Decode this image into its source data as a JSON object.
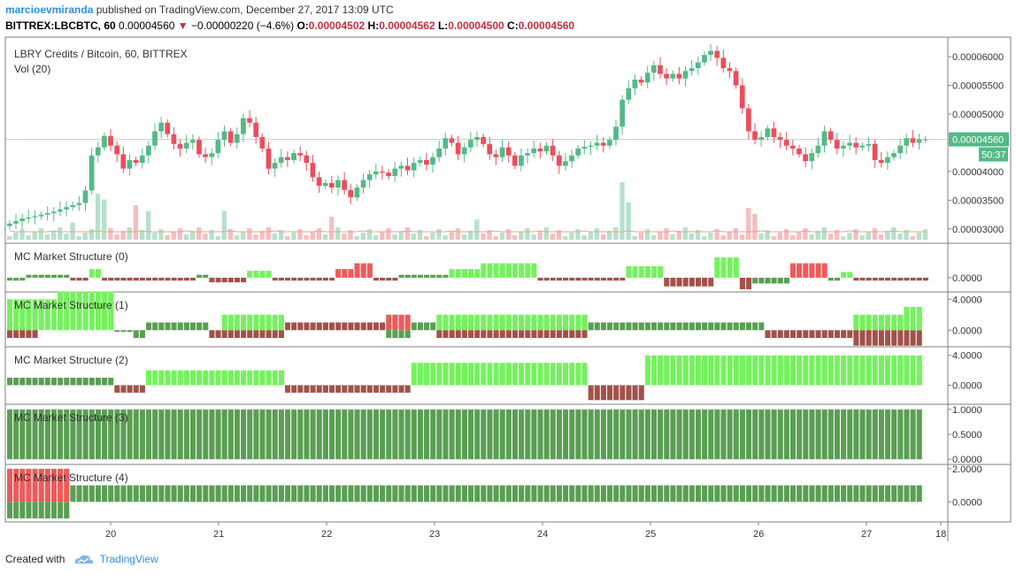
{
  "header": {
    "author": "marcioevmiranda",
    "published_text": "published on TradingView.com, December 27, 2017 13:09 UTC",
    "symbol": "BITTREX:LBCBTC, 60",
    "last_price": "0.00004560",
    "change": "−0.00000220 (−4.6%)",
    "o_label": "O:",
    "o_value": "0.00004502",
    "h_label": "H:",
    "h_value": "0.00004562",
    "l_label": "L:",
    "l_value": "0.00004500",
    "c_label": "C:",
    "c_value": "0.00004560"
  },
  "footer": {
    "created_with": "Created with",
    "brand": "TradingView"
  },
  "chart_data": [
    {
      "type": "candlestick",
      "title": "LBRY Credits / Bitcoin, 60, BITTREX",
      "volume_label": "Vol (20)",
      "ylim": [
        2.75e-05,
        6.34e-05
      ],
      "yticks": [
        "0.00006000",
        "0.00005500",
        "0.00005000",
        "0.00004500",
        "0.00004000",
        "0.00003500",
        "0.00003000"
      ],
      "ytick_values": [
        6e-05,
        5.5e-05,
        5e-05,
        4.5e-05,
        4e-05,
        3.5e-05,
        3e-05
      ],
      "last_price_label": "0.00004560",
      "last_price": 4.56e-05,
      "countdown": "50:37",
      "close_path": [
        [
          0,
          3.05e-05
        ],
        [
          3,
          3.18e-05
        ],
        [
          5,
          3.22e-05
        ],
        [
          8,
          3.3e-05
        ],
        [
          10,
          3.38e-05
        ],
        [
          12,
          3.45e-05
        ],
        [
          13,
          3.67e-05
        ],
        [
          14,
          4.28e-05
        ],
        [
          15,
          4.42e-05
        ],
        [
          16,
          4.62e-05
        ],
        [
          17,
          4.45e-05
        ],
        [
          18,
          4.3e-05
        ],
        [
          19,
          4.05e-05
        ],
        [
          20,
          4.2e-05
        ],
        [
          21,
          4.15e-05
        ],
        [
          22,
          4.28e-05
        ],
        [
          23,
          4.45e-05
        ],
        [
          24,
          4.7e-05
        ],
        [
          25,
          4.85e-05
        ],
        [
          26,
          4.65e-05
        ],
        [
          27,
          4.48e-05
        ],
        [
          28,
          4.4e-05
        ],
        [
          29,
          4.5e-05
        ],
        [
          30,
          4.55e-05
        ],
        [
          31,
          4.3e-05
        ],
        [
          32,
          4.25e-05
        ],
        [
          33,
          4.32e-05
        ],
        [
          34,
          4.55e-05
        ],
        [
          35,
          4.7e-05
        ],
        [
          36,
          4.5e-05
        ],
        [
          37,
          4.65e-05
        ],
        [
          38,
          4.93e-05
        ],
        [
          39,
          4.85e-05
        ],
        [
          40,
          4.6e-05
        ],
        [
          41,
          4.4e-05
        ],
        [
          42,
          4.05e-05
        ],
        [
          43,
          4.15e-05
        ],
        [
          44,
          4.25e-05
        ],
        [
          45,
          4.2e-05
        ],
        [
          46,
          4.32e-05
        ],
        [
          47,
          4.28e-05
        ],
        [
          48,
          4.15e-05
        ],
        [
          49,
          3.9e-05
        ],
        [
          50,
          3.75e-05
        ],
        [
          51,
          3.8e-05
        ],
        [
          52,
          3.72e-05
        ],
        [
          53,
          3.85e-05
        ],
        [
          54,
          3.68e-05
        ],
        [
          55,
          3.55e-05
        ],
        [
          56,
          3.72e-05
        ],
        [
          57,
          3.85e-05
        ],
        [
          58,
          3.95e-05
        ],
        [
          59,
          4e-05
        ],
        [
          60,
          3.98e-05
        ],
        [
          61,
          3.92e-05
        ],
        [
          62,
          4.05e-05
        ],
        [
          63,
          4.1e-05
        ],
        [
          64,
          4.02e-05
        ],
        [
          65,
          4.15e-05
        ],
        [
          66,
          4.2e-05
        ],
        [
          67,
          4.12e-05
        ],
        [
          68,
          4.25e-05
        ],
        [
          69,
          4.4e-05
        ],
        [
          70,
          4.58e-05
        ],
        [
          71,
          4.5e-05
        ],
        [
          72,
          4.3e-05
        ],
        [
          73,
          4.42e-05
        ],
        [
          74,
          4.55e-05
        ],
        [
          75,
          4.6e-05
        ],
        [
          76,
          4.48e-05
        ],
        [
          77,
          4.3e-05
        ],
        [
          78,
          4.25e-05
        ],
        [
          79,
          4.42e-05
        ],
        [
          80,
          4.28e-05
        ],
        [
          81,
          4.1e-05
        ],
        [
          82,
          4.28e-05
        ],
        [
          83,
          4.32e-05
        ],
        [
          84,
          4.4e-05
        ],
        [
          85,
          4.35e-05
        ],
        [
          86,
          4.45e-05
        ],
        [
          87,
          4.28e-05
        ],
        [
          88,
          4.1e-05
        ],
        [
          89,
          4.18e-05
        ],
        [
          90,
          4.28e-05
        ],
        [
          91,
          4.4e-05
        ],
        [
          92,
          4.43e-05
        ],
        [
          93,
          4.45e-05
        ],
        [
          94,
          4.5e-05
        ],
        [
          95,
          4.45e-05
        ],
        [
          96,
          4.55e-05
        ],
        [
          97,
          4.78e-05
        ],
        [
          98,
          5.25e-05
        ],
        [
          99,
          5.45e-05
        ],
        [
          100,
          5.6e-05
        ],
        [
          101,
          5.55e-05
        ],
        [
          102,
          5.72e-05
        ],
        [
          103,
          5.85e-05
        ],
        [
          104,
          5.7e-05
        ],
        [
          105,
          5.62e-05
        ],
        [
          106,
          5.7e-05
        ],
        [
          107,
          5.62e-05
        ],
        [
          108,
          5.75e-05
        ],
        [
          109,
          5.8e-05
        ],
        [
          110,
          5.9e-05
        ],
        [
          111,
          6.03e-05
        ],
        [
          112,
          6.1e-05
        ],
        [
          113,
          5.98e-05
        ],
        [
          114,
          5.8e-05
        ],
        [
          115,
          5.75e-05
        ],
        [
          116,
          5.5e-05
        ],
        [
          117,
          5.1e-05
        ],
        [
          118,
          4.7e-05
        ],
        [
          119,
          4.55e-05
        ],
        [
          120,
          4.6e-05
        ],
        [
          121,
          4.75e-05
        ],
        [
          122,
          4.6e-05
        ],
        [
          123,
          4.55e-05
        ],
        [
          124,
          4.45e-05
        ],
        [
          125,
          4.4e-05
        ],
        [
          126,
          4.3e-05
        ],
        [
          127,
          4.18e-05
        ],
        [
          128,
          4.32e-05
        ],
        [
          129,
          4.45e-05
        ],
        [
          130,
          4.7e-05
        ],
        [
          131,
          4.55e-05
        ],
        [
          132,
          4.4e-05
        ],
        [
          133,
          4.45e-05
        ],
        [
          134,
          4.5e-05
        ],
        [
          135,
          4.42e-05
        ],
        [
          136,
          4.45e-05
        ],
        [
          137,
          4.48e-05
        ],
        [
          138,
          4.2e-05
        ],
        [
          139,
          4.15e-05
        ],
        [
          140,
          4.25e-05
        ],
        [
          141,
          4.32e-05
        ],
        [
          142,
          4.45e-05
        ],
        [
          143,
          4.58e-05
        ],
        [
          144,
          4.5e-05
        ],
        [
          145,
          4.56e-05
        ]
      ],
      "volume_spikes": [
        [
          10,
          0.3
        ],
        [
          14,
          0.8
        ],
        [
          15,
          0.7
        ],
        [
          20,
          0.6
        ],
        [
          22,
          0.5
        ],
        [
          34,
          0.5
        ],
        [
          51,
          0.4
        ],
        [
          74,
          0.35
        ],
        [
          97,
          1.0
        ],
        [
          98,
          0.65
        ],
        [
          117,
          0.55
        ],
        [
          118,
          0.45
        ]
      ],
      "xticks": [
        "20",
        "21",
        "22",
        "23",
        "24",
        "25",
        "26",
        "27",
        "18"
      ]
    },
    {
      "type": "bar",
      "title": "MC Market Structure (0)",
      "yticks": [
        "0.0000"
      ],
      "ylim": [
        -2,
        5.5
      ],
      "segments": [
        [
          0,
          3,
          -0.5,
          "#5a9e53"
        ],
        [
          3,
          10,
          0.5,
          "#5a9e53"
        ],
        [
          10,
          13,
          -0.5,
          "#a0524b"
        ],
        [
          13,
          15,
          1.5,
          "#74f25d"
        ],
        [
          15,
          30,
          -0.5,
          "#a0524b"
        ],
        [
          30,
          32,
          0.5,
          "#5a9e53"
        ],
        [
          32,
          38,
          -0.8,
          "#a0524b"
        ],
        [
          38,
          42,
          1.2,
          "#74f25d"
        ],
        [
          42,
          52,
          -0.5,
          "#a0524b"
        ],
        [
          52,
          55,
          1.5,
          "#ee5a5a"
        ],
        [
          55,
          58,
          2.5,
          "#ee5a5a"
        ],
        [
          58,
          62,
          -0.5,
          "#a0524b"
        ],
        [
          62,
          70,
          0.5,
          "#5a9e53"
        ],
        [
          70,
          75,
          1.5,
          "#74f25d"
        ],
        [
          75,
          84,
          2.5,
          "#74f25d"
        ],
        [
          84,
          98,
          -0.5,
          "#a0524b"
        ],
        [
          98,
          104,
          2.0,
          "#74f25d"
        ],
        [
          104,
          112,
          -1.5,
          "#a0524b"
        ],
        [
          112,
          116,
          3.5,
          "#74f25d"
        ],
        [
          116,
          118,
          -2.0,
          "#a0524b"
        ],
        [
          118,
          124,
          -1.0,
          "#5a9e53"
        ],
        [
          124,
          130,
          2.5,
          "#ee5a5a"
        ],
        [
          130,
          132,
          -0.5,
          "#5a9e53"
        ],
        [
          132,
          134,
          1.0,
          "#74f25d"
        ],
        [
          134,
          146,
          -0.5,
          "#a0524b"
        ]
      ]
    },
    {
      "type": "bar",
      "title": "MC Market Structure (1)",
      "yticks": [
        "4.0000",
        "0.0000"
      ],
      "ytick_values": [
        4,
        0
      ],
      "ylim": [
        -1.8,
        4.6
      ],
      "segments": [
        [
          0,
          5,
          4,
          "#74f25d"
        ],
        [
          0,
          5,
          -1,
          "#a0524b"
        ],
        [
          5,
          8,
          4,
          "#74f25d"
        ],
        [
          8,
          17,
          5,
          "#74f25d"
        ],
        [
          17,
          20,
          0,
          "#5a9e53"
        ],
        [
          20,
          22,
          -1,
          "#5a9e53"
        ],
        [
          22,
          32,
          1,
          "#5a9e53"
        ],
        [
          32,
          44,
          -1,
          "#a0524b"
        ],
        [
          34,
          44,
          2,
          "#74f25d"
        ],
        [
          44,
          60,
          1,
          "#a0524b"
        ],
        [
          60,
          64,
          2,
          "#ee5a5a"
        ],
        [
          60,
          64,
          -1,
          "#5a9e53"
        ],
        [
          64,
          68,
          1,
          "#5a9e53"
        ],
        [
          68,
          92,
          2,
          "#74f25d"
        ],
        [
          68,
          92,
          -1,
          "#a0524b"
        ],
        [
          92,
          100,
          1,
          "#5a9e53"
        ],
        [
          100,
          120,
          1,
          "#5a9e53"
        ],
        [
          120,
          134,
          -1,
          "#a0524b"
        ],
        [
          134,
          142,
          2,
          "#74f25d"
        ],
        [
          134,
          145,
          -2,
          "#a0524b"
        ],
        [
          142,
          145,
          3,
          "#74f25d"
        ]
      ]
    },
    {
      "type": "bar",
      "title": "MC Market Structure (2)",
      "yticks": [
        "4.0000",
        "0.0000"
      ],
      "ytick_values": [
        4,
        0
      ],
      "ylim": [
        -2.2,
        4.8
      ],
      "segments": [
        [
          0,
          17,
          1,
          "#5a9e53"
        ],
        [
          17,
          22,
          -1,
          "#a0524b"
        ],
        [
          22,
          44,
          2,
          "#74f25d"
        ],
        [
          44,
          64,
          -1,
          "#a0524b"
        ],
        [
          64,
          92,
          3,
          "#74f25d"
        ],
        [
          92,
          101,
          -2,
          "#a0524b"
        ],
        [
          101,
          145,
          4,
          "#74f25d"
        ]
      ]
    },
    {
      "type": "bar",
      "title": "MC Market Structure (3)",
      "yticks": [
        "1.0000",
        "0.5000",
        "0.0000"
      ],
      "ytick_values": [
        1,
        0.5,
        0
      ],
      "ylim": [
        -0.05,
        1.05
      ],
      "segments": [
        [
          0,
          145,
          1,
          "#5a9e53"
        ]
      ]
    },
    {
      "type": "bar",
      "title": "MC Market Structure (4)",
      "yticks": [
        "2.0000",
        "0.0000"
      ],
      "ytick_values": [
        2,
        0
      ],
      "ylim": [
        -1.05,
        2.1
      ],
      "segments": [
        [
          0,
          10,
          2,
          "#ee5a5a"
        ],
        [
          0,
          10,
          -1,
          "#5a9e53"
        ],
        [
          10,
          145,
          1,
          "#5a9e53"
        ]
      ]
    }
  ]
}
